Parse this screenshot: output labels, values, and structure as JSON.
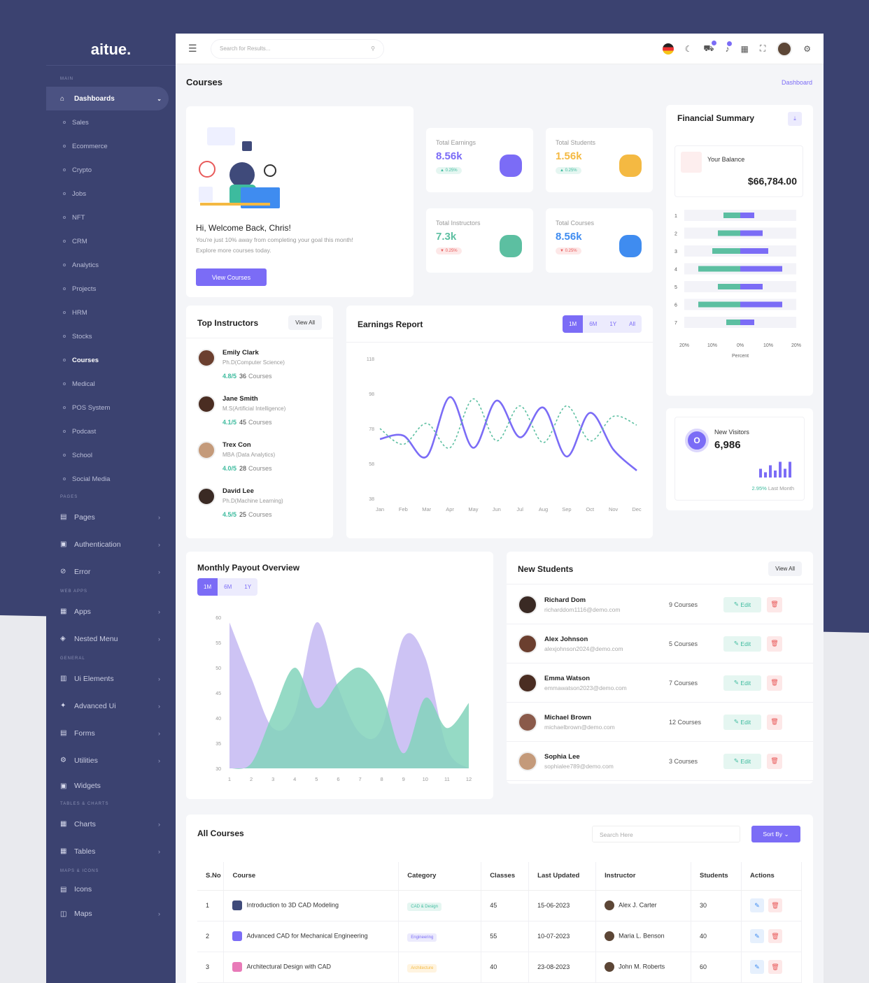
{
  "app": {
    "logo": "aitue."
  },
  "sidebar": {
    "sec_main": "MAIN",
    "sec_pages": "PAGES",
    "sec_webapps": "WEB APPS",
    "sec_general": "GENERAL",
    "sec_tables": "TABLES & CHARTS",
    "sec_maps": "MAPS & ICONS",
    "dashboards": "Dashboards",
    "sub": [
      "Sales",
      "Ecommerce",
      "Crypto",
      "Jobs",
      "NFT",
      "CRM",
      "Analytics",
      "Projects",
      "HRM",
      "Stocks",
      "Courses",
      "Medical",
      "POS System",
      "Podcast",
      "School",
      "Social Media"
    ],
    "pages": "Pages",
    "authentication": "Authentication",
    "error": "Error",
    "apps": "Apps",
    "nested": "Nested Menu",
    "ui": "Ui Elements",
    "advanced": "Advanced Ui",
    "forms": "Forms",
    "utilities": "Utilities",
    "widgets": "Widgets",
    "charts": "Charts",
    "tables": "Tables",
    "icons": "Icons",
    "maps": "Maps"
  },
  "topbar": {
    "search_placeholder": "Search for Results..."
  },
  "page": {
    "title": "Courses",
    "breadcrumb": "Dashboard"
  },
  "welcome": {
    "greeting": "Hi, Welcome Back, Chris!",
    "line1": "You're just 10% away from completing your goal this month!",
    "line2": "Explore more courses today.",
    "button": "View Courses"
  },
  "stats": [
    {
      "label": "Total Earnings",
      "value": "8.56k",
      "change": "▲ 0.25%",
      "color": "#7b6cf6"
    },
    {
      "label": "Total Students",
      "value": "1.56k",
      "change": "▲ 0.25%",
      "color": "#f4b942"
    },
    {
      "label": "Total Instructors",
      "value": "7.3k",
      "change": "▼ 0.25%",
      "color": "#5cbfa1"
    },
    {
      "label": "Total Courses",
      "value": "8.56k",
      "change": "▼ 0.25%",
      "color": "#3f8cf0"
    }
  ],
  "financial": {
    "title": "Financial Summary",
    "balance_label": "Your Balance",
    "balance": "$66,784.00",
    "xlabel": "Percent"
  },
  "visitors": {
    "label": "New Visitors",
    "value": "6,986",
    "change": "2.95%",
    "period": "Last Month",
    "avatar": "O"
  },
  "instructors": {
    "title": "Top Instructors",
    "view_all": "View All",
    "items": [
      {
        "name": "Emily Clark",
        "degree": "Ph.D(Computer Science)",
        "rating": "4.8/5",
        "count": "36",
        "unit": "Courses"
      },
      {
        "name": "Jane Smith",
        "degree": "M.S(Artificial Intelligence)",
        "rating": "4.1/5",
        "count": "45",
        "unit": "Courses"
      },
      {
        "name": "Trex Con",
        "degree": "MBA (Data Analytics)",
        "rating": "4.0/5",
        "count": "28",
        "unit": "Courses"
      },
      {
        "name": "David Lee",
        "degree": "Ph.D(Machine Learning)",
        "rating": "4.5/5",
        "count": "25",
        "unit": "Courses"
      }
    ]
  },
  "earnings": {
    "title": "Earnings Report",
    "tabs": [
      "1M",
      "6M",
      "1Y",
      "All"
    ]
  },
  "payout": {
    "title": "Monthly Payout Overview",
    "tabs": [
      "1M",
      "6M",
      "1Y"
    ]
  },
  "students": {
    "title": "New Students",
    "view_all": "View All",
    "edit": "Edit",
    "items": [
      {
        "name": "Richard Dom",
        "email": "richarddom1116@demo.com",
        "courses": "9 Courses"
      },
      {
        "name": "Alex Johnson",
        "email": "alexjohnson2024@demo.com",
        "courses": "5 Courses"
      },
      {
        "name": "Emma Watson",
        "email": "emmawatson2023@demo.com",
        "courses": "7 Courses"
      },
      {
        "name": "Michael Brown",
        "email": "michaelbrown@demo.com",
        "courses": "12 Courses"
      },
      {
        "name": "Sophia Lee",
        "email": "sophialee789@demo.com",
        "courses": "3 Courses"
      }
    ]
  },
  "courses": {
    "title": "All Courses",
    "search_placeholder": "Search Here",
    "sort": "Sort By ⌄",
    "headers": [
      "S.No",
      "Course",
      "Category",
      "Classes",
      "Last Updated",
      "Instructor",
      "Students",
      "Actions"
    ],
    "rows": [
      {
        "no": "1",
        "course": "Introduction to 3D CAD Modeling",
        "category": "CAD & Design",
        "classes": "45",
        "updated": "15-06-2023",
        "instructor": "Alex J. Carter",
        "students": "30"
      },
      {
        "no": "2",
        "course": "Advanced CAD for Mechanical Engineering",
        "category": "Engineering",
        "classes": "55",
        "updated": "10-07-2023",
        "instructor": "Maria L. Benson",
        "students": "40"
      },
      {
        "no": "3",
        "course": "Architectural Design with CAD",
        "category": "Architecture",
        "classes": "40",
        "updated": "23-08-2023",
        "instructor": "John M. Roberts",
        "students": "60"
      }
    ]
  },
  "chart_data": [
    {
      "type": "bar",
      "title": "",
      "orientation": "horizontal",
      "categories": [
        "1",
        "2",
        "3",
        "4",
        "5",
        "6",
        "7"
      ],
      "series": [
        {
          "values": [
            -6,
            -8,
            -10,
            -15,
            -8,
            -15,
            -5
          ],
          "color": "#5cbfa1"
        },
        {
          "values": [
            5,
            8,
            10,
            15,
            8,
            15,
            5
          ],
          "color": "#7b6cf6"
        }
      ],
      "xticks": [
        "20%",
        "10%",
        "0%",
        "10%",
        "20%"
      ],
      "xlabel": "Percent",
      "xlim": [
        -20,
        20
      ]
    },
    {
      "type": "line",
      "title": "",
      "categories": [
        "Jan",
        "Feb",
        "Mar",
        "Apr",
        "May",
        "Jun",
        "Jul",
        "Aug",
        "Sep",
        "Oct",
        "Nov",
        "Dec"
      ],
      "yticks": [
        38,
        58,
        78,
        98,
        118
      ],
      "ylim": [
        38,
        118
      ],
      "series": [
        {
          "values": [
            72,
            74,
            62,
            96,
            67,
            94,
            73,
            90,
            62,
            87,
            66,
            54
          ],
          "color": "#7b6cf6",
          "dashed": false
        },
        {
          "values": [
            78,
            69,
            81,
            67,
            95,
            71,
            91,
            70,
            91,
            71,
            85,
            80
          ],
          "color": "#5cbfa1",
          "dashed": true
        }
      ]
    },
    {
      "type": "area",
      "title": "",
      "x": [
        1,
        2,
        3,
        4,
        5,
        6,
        7,
        8,
        9,
        10,
        11,
        12
      ],
      "yticks": [
        30,
        35,
        40,
        45,
        50,
        55,
        60
      ],
      "ylim": [
        30,
        60
      ],
      "series": [
        {
          "values": [
            59,
            48,
            38,
            41,
            59,
            46,
            37,
            38,
            56,
            52,
            34,
            30
          ],
          "color": "#b8a9f0"
        },
        {
          "values": [
            30,
            31,
            41,
            50,
            42,
            47,
            50,
            45,
            33,
            44,
            38,
            43
          ],
          "color": "#82d3bb"
        }
      ]
    },
    {
      "type": "bar",
      "title": "",
      "categories": [
        "1",
        "2",
        "3",
        "4",
        "5",
        "6",
        "7"
      ],
      "values": [
        5,
        3,
        7,
        4,
        9,
        5,
        9
      ],
      "color": "#7b6cf6"
    }
  ]
}
